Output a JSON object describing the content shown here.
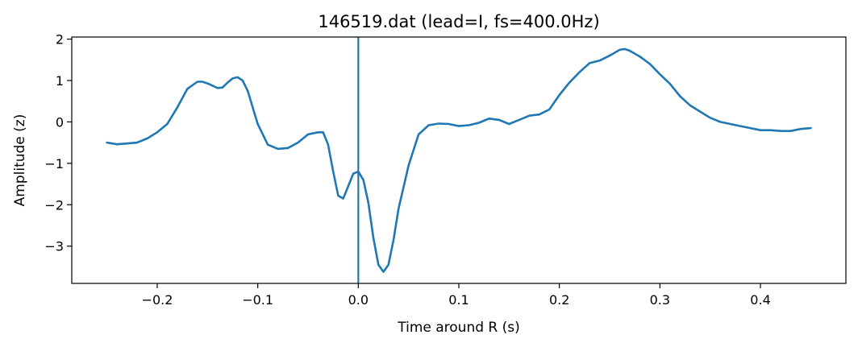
{
  "chart_data": {
    "type": "line",
    "title": "146519.dat (lead=I, fs=400.0Hz)",
    "xlabel": "Time around R (s)",
    "ylabel": "Amplitude (z)",
    "xlim": [
      -0.285,
      0.485
    ],
    "ylim": [
      -3.9,
      2.05
    ],
    "xticks": [
      -0.2,
      -0.1,
      0.0,
      0.1,
      0.2,
      0.3,
      0.4
    ],
    "xtick_labels": [
      "−0.2",
      "−0.1",
      "0.0",
      "0.1",
      "0.2",
      "0.3",
      "0.4"
    ],
    "yticks": [
      -3,
      -2,
      -1,
      0,
      1,
      2
    ],
    "ytick_labels": [
      "−3",
      "−2",
      "−1",
      "0",
      "1",
      "2"
    ],
    "grid": false,
    "vline_x": 0.0,
    "line_color": "#1f77b4",
    "series": [
      {
        "x": [
          -0.25,
          -0.24,
          -0.23,
          -0.22,
          -0.21,
          -0.2,
          -0.19,
          -0.18,
          -0.17,
          -0.16,
          -0.155,
          -0.15,
          -0.14,
          -0.135,
          -0.13,
          -0.125,
          -0.12,
          -0.115,
          -0.11,
          -0.1,
          -0.09,
          -0.08,
          -0.07,
          -0.06,
          -0.05,
          -0.04,
          -0.035,
          -0.03,
          -0.025,
          -0.02,
          -0.015,
          -0.01,
          -0.005,
          0.0,
          0.005,
          0.01,
          0.015,
          0.02,
          0.025,
          0.03,
          0.035,
          0.04,
          0.05,
          0.06,
          0.07,
          0.08,
          0.09,
          0.1,
          0.11,
          0.12,
          0.13,
          0.14,
          0.15,
          0.16,
          0.17,
          0.18,
          0.19,
          0.2,
          0.21,
          0.22,
          0.23,
          0.24,
          0.25,
          0.26,
          0.265,
          0.27,
          0.28,
          0.29,
          0.3,
          0.31,
          0.32,
          0.33,
          0.34,
          0.35,
          0.36,
          0.37,
          0.38,
          0.39,
          0.4,
          0.41,
          0.42,
          0.43,
          0.44,
          0.45
        ],
        "y": [
          -0.5,
          -0.54,
          -0.52,
          -0.5,
          -0.4,
          -0.25,
          -0.05,
          0.35,
          0.8,
          0.97,
          0.97,
          0.93,
          0.82,
          0.83,
          0.95,
          1.05,
          1.08,
          1.0,
          0.75,
          -0.05,
          -0.55,
          -0.65,
          -0.63,
          -0.5,
          -0.3,
          -0.25,
          -0.25,
          -0.55,
          -1.2,
          -1.78,
          -1.85,
          -1.55,
          -1.25,
          -1.2,
          -1.4,
          -1.95,
          -2.8,
          -3.45,
          -3.62,
          -3.45,
          -2.85,
          -2.1,
          -1.05,
          -0.3,
          -0.08,
          -0.04,
          -0.05,
          -0.1,
          -0.08,
          -0.02,
          0.08,
          0.05,
          -0.05,
          0.05,
          0.15,
          0.18,
          0.3,
          0.65,
          0.95,
          1.2,
          1.42,
          1.48,
          1.6,
          1.74,
          1.76,
          1.72,
          1.58,
          1.4,
          1.15,
          0.92,
          0.62,
          0.4,
          0.25,
          0.1,
          0.0,
          -0.05,
          -0.1,
          -0.15,
          -0.2,
          -0.2,
          -0.22,
          -0.22,
          -0.17,
          -0.15
        ]
      }
    ]
  }
}
